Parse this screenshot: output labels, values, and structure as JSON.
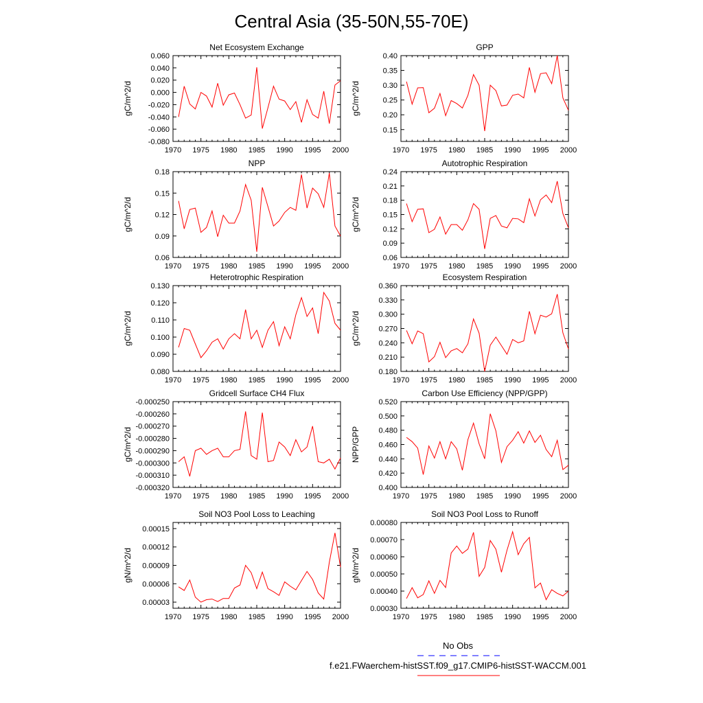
{
  "page_title": "Central Asia (35-50N,55-70E)",
  "legend": {
    "entries": [
      {
        "label": "No Obs",
        "color": "#0000ff",
        "dash": "dashed"
      },
      {
        "label": "f.e21.FWaerchem-histSST.f09_g17.CMIP6-histSST-WACCM.001",
        "color": "#ff0000",
        "dash": "solid"
      }
    ]
  },
  "colors": {
    "series": "#ff0000",
    "obs": "#0000ff",
    "axis": "#000000"
  },
  "chart_data": [
    {
      "type": "line",
      "title": "Net Ecosystem Exchange",
      "xlabel": "",
      "ylabel": "gC/m^2/d",
      "xlim": [
        1970,
        2000
      ],
      "ylim": [
        -0.08,
        0.06
      ],
      "xticks": [
        1970,
        1975,
        1980,
        1985,
        1990,
        1995,
        2000
      ],
      "yticks": [
        "-0.080",
        "-0.060",
        "-0.040",
        "-0.020",
        "0.000",
        "0.020",
        "0.040",
        "0.060"
      ],
      "x": [
        1971,
        1972,
        1973,
        1974,
        1975,
        1976,
        1977,
        1978,
        1979,
        1980,
        1981,
        1982,
        1983,
        1984,
        1985,
        1986,
        1987,
        1988,
        1989,
        1990,
        1991,
        1992,
        1993,
        1994,
        1995,
        1996,
        1997,
        1998,
        1999,
        2000
      ],
      "series": [
        {
          "name": "f.e21.FWaerchem-histSST.f09_g17.CMIP6-histSST-WACCM.001",
          "values": [
            -0.04,
            0.01,
            -0.019,
            -0.027,
            0.0,
            -0.006,
            -0.024,
            0.015,
            -0.021,
            -0.004,
            -0.001,
            -0.02,
            -0.042,
            -0.037,
            0.041,
            -0.059,
            -0.025,
            0.01,
            -0.011,
            -0.014,
            -0.028,
            -0.015,
            -0.049,
            -0.012,
            -0.036,
            -0.042,
            0.002,
            -0.051,
            0.012,
            0.019
          ]
        }
      ]
    },
    {
      "type": "line",
      "title": "GPP",
      "xlabel": "",
      "ylabel": "gC/m^2/d",
      "xlim": [
        1970,
        2000
      ],
      "ylim": [
        0.11,
        0.4
      ],
      "xticks": [
        1970,
        1975,
        1980,
        1985,
        1990,
        1995,
        2000
      ],
      "yticks": [
        "0.15",
        "0.20",
        "0.25",
        "0.30",
        "0.35",
        "0.40"
      ],
      "x": [
        1971,
        1972,
        1973,
        1974,
        1975,
        1976,
        1977,
        1978,
        1979,
        1980,
        1981,
        1982,
        1983,
        1984,
        1985,
        1986,
        1987,
        1988,
        1989,
        1990,
        1991,
        1992,
        1993,
        1994,
        1995,
        1996,
        1997,
        1998,
        1999,
        2000
      ],
      "series": [
        {
          "name": "f.e21.FWaerchem-histSST.f09_g17.CMIP6-histSST-WACCM.001",
          "values": [
            0.312,
            0.236,
            0.291,
            0.292,
            0.207,
            0.222,
            0.272,
            0.197,
            0.248,
            0.238,
            0.223,
            0.266,
            0.336,
            0.3,
            0.145,
            0.3,
            0.282,
            0.23,
            0.233,
            0.266,
            0.27,
            0.257,
            0.36,
            0.276,
            0.339,
            0.342,
            0.305,
            0.4,
            0.257,
            0.215
          ]
        }
      ]
    },
    {
      "type": "line",
      "title": "NPP",
      "xlabel": "",
      "ylabel": "gC/m^2/d",
      "xlim": [
        1970,
        2000
      ],
      "ylim": [
        0.06,
        0.18
      ],
      "xticks": [
        1970,
        1975,
        1980,
        1985,
        1990,
        1995,
        2000
      ],
      "yticks": [
        "0.06",
        "0.09",
        "0.12",
        "0.15",
        "0.18"
      ],
      "x": [
        1971,
        1972,
        1973,
        1974,
        1975,
        1976,
        1977,
        1978,
        1979,
        1980,
        1981,
        1982,
        1983,
        1984,
        1985,
        1986,
        1987,
        1988,
        1989,
        1990,
        1991,
        1992,
        1993,
        1994,
        1995,
        1996,
        1997,
        1998,
        1999,
        2000
      ],
      "series": [
        {
          "name": "f.e21.FWaerchem-histSST.f09_g17.CMIP6-histSST-WACCM.001",
          "values": [
            0.139,
            0.1,
            0.127,
            0.129,
            0.095,
            0.102,
            0.125,
            0.089,
            0.119,
            0.108,
            0.108,
            0.125,
            0.162,
            0.14,
            0.068,
            0.158,
            0.131,
            0.104,
            0.111,
            0.123,
            0.13,
            0.126,
            0.176,
            0.129,
            0.157,
            0.149,
            0.13,
            0.178,
            0.104,
            0.09
          ]
        }
      ]
    },
    {
      "type": "line",
      "title": "Autotrophic Respiration",
      "xlabel": "",
      "ylabel": "gC/m^2/d",
      "xlim": [
        1970,
        2000
      ],
      "ylim": [
        0.06,
        0.24
      ],
      "xticks": [
        1970,
        1975,
        1980,
        1985,
        1990,
        1995,
        2000
      ],
      "yticks": [
        "0.06",
        "0.09",
        "0.12",
        "0.15",
        "0.18",
        "0.21",
        "0.24"
      ],
      "x": [
        1971,
        1972,
        1973,
        1974,
        1975,
        1976,
        1977,
        1978,
        1979,
        1980,
        1981,
        1982,
        1983,
        1984,
        1985,
        1986,
        1987,
        1988,
        1989,
        1990,
        1991,
        1992,
        1993,
        1994,
        1995,
        1996,
        1997,
        1998,
        1999,
        2000
      ],
      "series": [
        {
          "name": "f.e21.FWaerchem-histSST.f09_g17.CMIP6-histSST-WACCM.001",
          "values": [
            0.173,
            0.135,
            0.161,
            0.162,
            0.112,
            0.119,
            0.145,
            0.109,
            0.129,
            0.129,
            0.117,
            0.139,
            0.173,
            0.161,
            0.078,
            0.142,
            0.148,
            0.126,
            0.122,
            0.142,
            0.141,
            0.133,
            0.183,
            0.147,
            0.181,
            0.191,
            0.175,
            0.22,
            0.152,
            0.122
          ]
        }
      ]
    },
    {
      "type": "line",
      "title": "Heterotrophic Respiration",
      "xlabel": "",
      "ylabel": "gC/m^2/d",
      "xlim": [
        1970,
        2000
      ],
      "ylim": [
        0.08,
        0.13
      ],
      "xticks": [
        1970,
        1975,
        1980,
        1985,
        1990,
        1995,
        2000
      ],
      "yticks": [
        "0.080",
        "0.090",
        "0.100",
        "0.110",
        "0.120",
        "0.130"
      ],
      "x": [
        1971,
        1972,
        1973,
        1974,
        1975,
        1976,
        1977,
        1978,
        1979,
        1980,
        1981,
        1982,
        1983,
        1984,
        1985,
        1986,
        1987,
        1988,
        1989,
        1990,
        1991,
        1992,
        1993,
        1994,
        1995,
        1996,
        1997,
        1998,
        1999,
        2000
      ],
      "series": [
        {
          "name": "f.e21.FWaerchem-histSST.f09_g17.CMIP6-histSST-WACCM.001",
          "values": [
            0.094,
            0.105,
            0.104,
            0.096,
            0.088,
            0.092,
            0.097,
            0.099,
            0.093,
            0.099,
            0.102,
            0.099,
            0.116,
            0.099,
            0.104,
            0.094,
            0.104,
            0.109,
            0.095,
            0.106,
            0.099,
            0.113,
            0.123,
            0.112,
            0.117,
            0.102,
            0.126,
            0.121,
            0.108,
            0.104
          ]
        }
      ]
    },
    {
      "type": "line",
      "title": "Ecosystem Respiration",
      "xlabel": "",
      "ylabel": "gC/m^2/d",
      "xlim": [
        1970,
        2000
      ],
      "ylim": [
        0.18,
        0.36
      ],
      "xticks": [
        1970,
        1975,
        1980,
        1985,
        1990,
        1995,
        2000
      ],
      "yticks": [
        "0.180",
        "0.210",
        "0.240",
        "0.270",
        "0.300",
        "0.330",
        "0.360"
      ],
      "x": [
        1971,
        1972,
        1973,
        1974,
        1975,
        1976,
        1977,
        1978,
        1979,
        1980,
        1981,
        1982,
        1983,
        1984,
        1985,
        1986,
        1987,
        1988,
        1989,
        1990,
        1991,
        1992,
        1993,
        1994,
        1995,
        1996,
        1997,
        1998,
        1999,
        2000
      ],
      "series": [
        {
          "name": "f.e21.FWaerchem-histSST.f09_g17.CMIP6-histSST-WACCM.001",
          "values": [
            0.266,
            0.238,
            0.265,
            0.259,
            0.2,
            0.211,
            0.241,
            0.209,
            0.223,
            0.228,
            0.219,
            0.238,
            0.29,
            0.26,
            0.18,
            0.235,
            0.252,
            0.234,
            0.216,
            0.247,
            0.24,
            0.244,
            0.306,
            0.259,
            0.298,
            0.294,
            0.301,
            0.342,
            0.261,
            0.227
          ]
        }
      ]
    },
    {
      "type": "line",
      "title": "Gridcell Surface CH4 Flux",
      "xlabel": "",
      "ylabel": "gC/m^2/d",
      "xlim": [
        1970,
        2000
      ],
      "ylim": [
        -0.00032,
        -0.00025
      ],
      "xticks": [
        1970,
        1975,
        1980,
        1985,
        1990,
        1995,
        2000
      ],
      "yticks": [
        "-0.000320",
        "-0.000310",
        "-0.000300",
        "-0.000290",
        "-0.000280",
        "-0.000270",
        "-0.000260",
        "-0.000250"
      ],
      "x": [
        1971,
        1972,
        1973,
        1974,
        1975,
        1976,
        1977,
        1978,
        1979,
        1980,
        1981,
        1982,
        1983,
        1984,
        1985,
        1986,
        1987,
        1988,
        1989,
        1990,
        1991,
        1992,
        1993,
        1994,
        1995,
        1996,
        1997,
        1998,
        1999,
        2000
      ],
      "series": [
        {
          "name": "f.e21.FWaerchem-histSST.f09_g17.CMIP6-histSST-WACCM.001",
          "values": [
            -0.000299,
            -0.000295,
            -0.000311,
            -0.00029,
            -0.000288,
            -0.000293,
            -0.00029,
            -0.000288,
            -0.000295,
            -0.000295,
            -0.00029,
            -0.000289,
            -0.000258,
            -0.000294,
            -0.000297,
            -0.000259,
            -0.000299,
            -0.000298,
            -0.000283,
            -0.000287,
            -0.000294,
            -0.000281,
            -0.000291,
            -0.000287,
            -0.00027,
            -0.000299,
            -0.0003,
            -0.000297,
            -0.000305,
            -0.000296
          ]
        }
      ]
    },
    {
      "type": "line",
      "title": "Carbon Use Efficiency (NPP/GPP)",
      "xlabel": "",
      "ylabel": "NPP/GPP",
      "xlim": [
        1970,
        2000
      ],
      "ylim": [
        0.4,
        0.52
      ],
      "xticks": [
        1970,
        1975,
        1980,
        1985,
        1990,
        1995,
        2000
      ],
      "yticks": [
        "0.400",
        "0.420",
        "0.440",
        "0.460",
        "0.480",
        "0.500",
        "0.520"
      ],
      "x": [
        1971,
        1972,
        1973,
        1974,
        1975,
        1976,
        1977,
        1978,
        1979,
        1980,
        1981,
        1982,
        1983,
        1984,
        1985,
        1986,
        1987,
        1988,
        1989,
        1990,
        1991,
        1992,
        1993,
        1994,
        1995,
        1996,
        1997,
        1998,
        1999,
        2000
      ],
      "series": [
        {
          "name": "f.e21.FWaerchem-histSST.f09_g17.CMIP6-histSST-WACCM.001",
          "values": [
            0.47,
            0.464,
            0.455,
            0.418,
            0.458,
            0.441,
            0.464,
            0.44,
            0.464,
            0.454,
            0.424,
            0.467,
            0.49,
            0.461,
            0.44,
            0.503,
            0.479,
            0.435,
            0.457,
            0.466,
            0.478,
            0.462,
            0.479,
            0.463,
            0.473,
            0.453,
            0.443,
            0.466,
            0.425,
            0.431
          ]
        }
      ]
    },
    {
      "type": "line",
      "title": "Soil NO3 Pool Loss to Leaching",
      "xlabel": "",
      "ylabel": "gN/m^2/d",
      "xlim": [
        1970,
        2000
      ],
      "ylim": [
        2e-05,
        0.00016
      ],
      "xticks": [
        1970,
        1975,
        1980,
        1985,
        1990,
        1995,
        2000
      ],
      "yticks": [
        "0.00003",
        "0.00006",
        "0.00009",
        "0.00012",
        "0.00015"
      ],
      "x": [
        1971,
        1972,
        1973,
        1974,
        1975,
        1976,
        1977,
        1978,
        1979,
        1980,
        1981,
        1982,
        1983,
        1984,
        1985,
        1986,
        1987,
        1988,
        1989,
        1990,
        1991,
        1992,
        1993,
        1994,
        1995,
        1996,
        1997,
        1998,
        1999,
        2000
      ],
      "series": [
        {
          "name": "f.e21.FWaerchem-histSST.f09_g17.CMIP6-histSST-WACCM.001",
          "values": [
            5.5e-05,
            4.9e-05,
            6.6e-05,
            3.8e-05,
            3e-05,
            3.4e-05,
            3.5e-05,
            3.1e-05,
            3.6e-05,
            3.6e-05,
            5.3e-05,
            5.8e-05,
            9e-05,
            7.8e-05,
            5.2e-05,
            7.9e-05,
            5.2e-05,
            4.7e-05,
            4.1e-05,
            6.3e-05,
            5.6e-05,
            5e-05,
            6.5e-05,
            8e-05,
            6.7e-05,
            4.5e-05,
            3.5e-05,
            9.5e-05,
            0.000143,
            8.7e-05
          ]
        }
      ]
    },
    {
      "type": "line",
      "title": "Soil NO3 Pool Loss to Runoff",
      "xlabel": "",
      "ylabel": "gN/m^2/d",
      "xlim": [
        1970,
        2000
      ],
      "ylim": [
        0.0003,
        0.0008
      ],
      "xticks": [
        1970,
        1975,
        1980,
        1985,
        1990,
        1995,
        2000
      ],
      "yticks": [
        "0.00030",
        "0.00040",
        "0.00050",
        "0.00060",
        "0.00070",
        "0.00080"
      ],
      "x": [
        1971,
        1972,
        1973,
        1974,
        1975,
        1976,
        1977,
        1978,
        1979,
        1980,
        1981,
        1982,
        1983,
        1984,
        1985,
        1986,
        1987,
        1988,
        1989,
        1990,
        1991,
        1992,
        1993,
        1994,
        1995,
        1996,
        1997,
        1998,
        1999,
        2000
      ],
      "series": [
        {
          "name": "f.e21.FWaerchem-histSST.f09_g17.CMIP6-histSST-WACCM.001",
          "values": [
            0.000357,
            0.00042,
            0.000361,
            0.00038,
            0.00046,
            0.000387,
            0.000463,
            0.000421,
            0.000622,
            0.000663,
            0.00062,
            0.000645,
            0.000742,
            0.000486,
            0.000538,
            0.000695,
            0.000644,
            0.00051,
            0.000638,
            0.000746,
            0.000612,
            0.000676,
            0.000713,
            0.000419,
            0.000447,
            0.00035,
            0.000408,
            0.000387,
            0.000372,
            0.0004
          ]
        }
      ]
    }
  ]
}
